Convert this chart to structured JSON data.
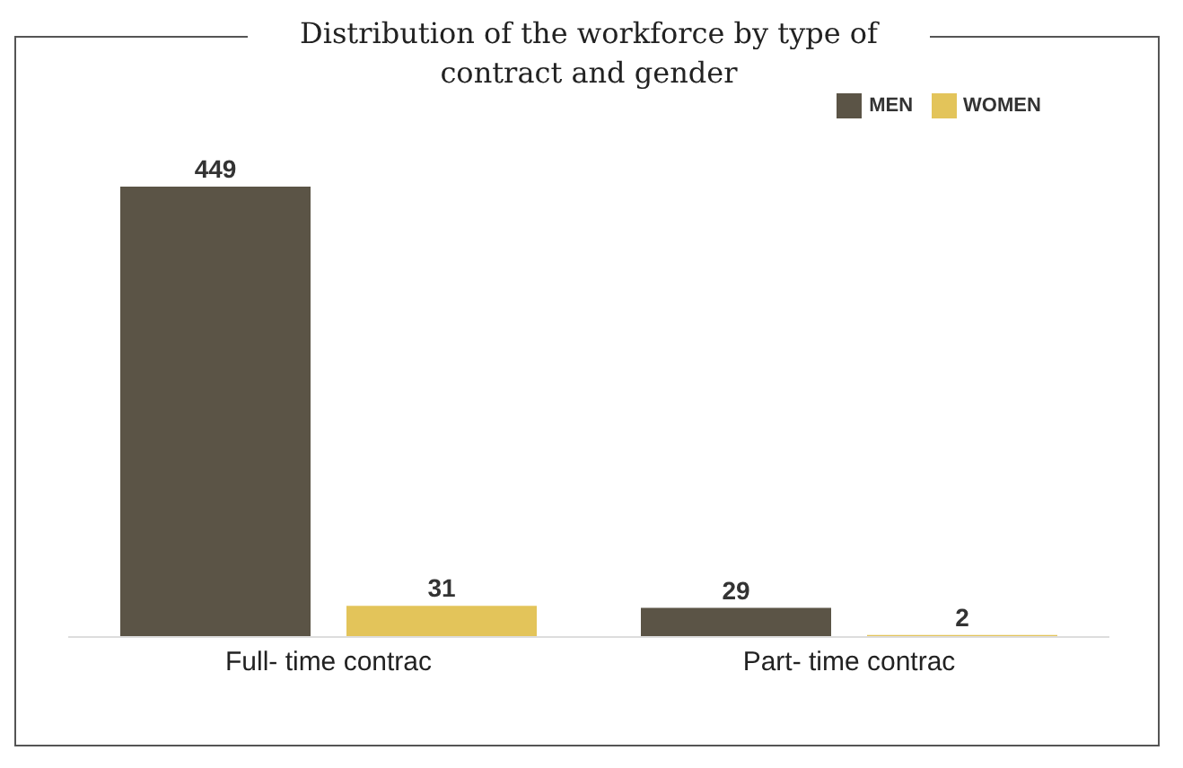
{
  "chart_data": {
    "type": "bar",
    "title": "Distribution of the workforce by type of contract and gender",
    "categories": [
      "Full- time contrac",
      "Part- time contrac"
    ],
    "series": [
      {
        "name": "MEN",
        "color": "#5b5446",
        "values": [
          449,
          29
        ]
      },
      {
        "name": "WOMEN",
        "color": "#e3c45a",
        "values": [
          31,
          2
        ]
      }
    ],
    "data_labels": true,
    "legend": "top"
  }
}
